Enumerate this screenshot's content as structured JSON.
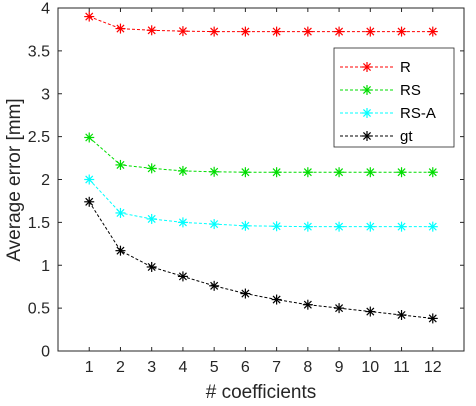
{
  "chart_data": {
    "type": "line",
    "title": "",
    "xlabel": "# coefficients",
    "ylabel": "Average error [mm]",
    "x": [
      1,
      2,
      3,
      4,
      5,
      6,
      7,
      8,
      9,
      10,
      11,
      12
    ],
    "xlim": [
      0,
      13
    ],
    "ylim": [
      0,
      4
    ],
    "xticks": [
      1,
      2,
      3,
      4,
      5,
      6,
      7,
      8,
      9,
      10,
      11,
      12
    ],
    "yticks": [
      0,
      0.5,
      1,
      1.5,
      2,
      2.5,
      3,
      3.5,
      4
    ],
    "ytick_labels": [
      "0",
      "0.5",
      "1",
      "1.5",
      "2",
      "2.5",
      "3",
      "3.5",
      "4"
    ],
    "grid": false,
    "legend_position": "top-right",
    "marker": "asterisk",
    "line_style": "dashed",
    "series": [
      {
        "name": "R",
        "color": "#ff0000",
        "values": [
          3.9,
          3.76,
          3.74,
          3.73,
          3.725,
          3.725,
          3.725,
          3.725,
          3.725,
          3.725,
          3.725,
          3.725
        ]
      },
      {
        "name": "RS",
        "color": "#00dd00",
        "values": [
          2.49,
          2.17,
          2.13,
          2.1,
          2.09,
          2.085,
          2.085,
          2.085,
          2.085,
          2.085,
          2.085,
          2.085
        ]
      },
      {
        "name": "RS-A",
        "color": "#00ffff",
        "values": [
          2.0,
          1.61,
          1.54,
          1.5,
          1.48,
          1.46,
          1.455,
          1.45,
          1.45,
          1.45,
          1.45,
          1.45
        ]
      },
      {
        "name": "gt",
        "color": "#000000",
        "values": [
          1.74,
          1.17,
          0.98,
          0.87,
          0.76,
          0.67,
          0.6,
          0.54,
          0.5,
          0.46,
          0.42,
          0.38
        ]
      }
    ]
  }
}
